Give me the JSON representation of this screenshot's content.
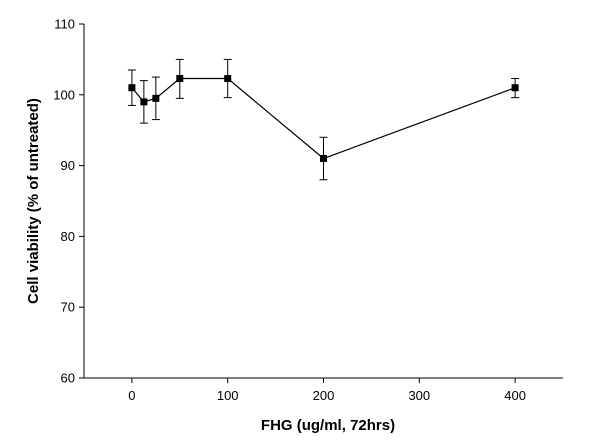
{
  "chart_data": {
    "type": "line",
    "title": "",
    "xlabel": "FHG (ug/ml, 72hrs)",
    "ylabel": "Cell viability (% of untreated)",
    "xlim": [
      -50,
      450
    ],
    "ylim": [
      60,
      110
    ],
    "x_ticks": [
      0,
      100,
      200,
      300,
      400
    ],
    "y_ticks": [
      60,
      70,
      80,
      90,
      100,
      110
    ],
    "grid": false,
    "legend": "none",
    "series": [
      {
        "x": [
          0,
          12.5,
          25,
          50,
          100,
          200,
          400
        ],
        "y": [
          101.0,
          99.0,
          99.5,
          102.3,
          102.3,
          91.0,
          101.0
        ],
        "err_upper": [
          103.5,
          102.0,
          102.5,
          105.0,
          105.0,
          94.0,
          102.3
        ],
        "err_lower": [
          98.5,
          96.0,
          96.5,
          99.5,
          99.6,
          88.0,
          99.6
        ]
      }
    ],
    "colors": {
      "line": "#000000",
      "marker": "#000000"
    }
  }
}
